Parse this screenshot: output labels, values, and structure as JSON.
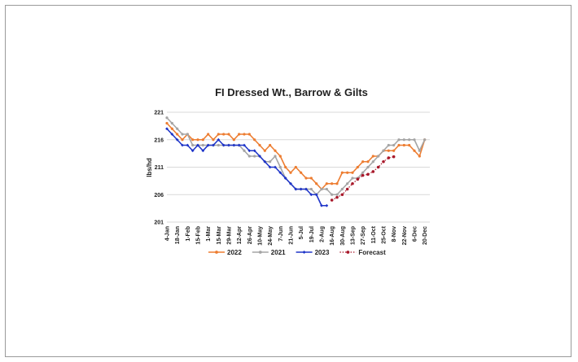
{
  "chart_data": {
    "type": "line",
    "title": "FI Dressed Wt., Barrow & Gilts",
    "xlabel": "",
    "ylabel": "lbs/hd",
    "ylim": [
      201,
      221
    ],
    "yticks": [
      201,
      206,
      211,
      216,
      221
    ],
    "grid": "horizontal",
    "legend_position": "bottom",
    "categories": [
      "4-Jan",
      "11-Jan",
      "18-Jan",
      "25-Jan",
      "1-Feb",
      "8-Feb",
      "15-Feb",
      "22-Feb",
      "1-Mar",
      "8-Mar",
      "15-Mar",
      "22-Mar",
      "29-Mar",
      "5-Apr",
      "12-Apr",
      "19-Apr",
      "26-Apr",
      "3-May",
      "10-May",
      "17-May",
      "24-May",
      "31-May",
      "7-Jun",
      "14-Jun",
      "21-Jun",
      "28-Jun",
      "5-Jul",
      "12-Jul",
      "19-Jul",
      "26-Jul",
      "2-Aug",
      "9-Aug",
      "16-Aug",
      "23-Aug",
      "30-Aug",
      "6-Sep",
      "13-Sep",
      "20-Sep",
      "27-Sep",
      "4-Oct",
      "11-Oct",
      "18-Oct",
      "25-Oct",
      "1-Nov",
      "8-Nov",
      "15-Nov",
      "22-Nov",
      "29-Nov",
      "6-Dec",
      "13-Dec",
      "20-Dec",
      "27-Dec"
    ],
    "tick_labels": [
      "4-Jan",
      "18-Jan",
      "1-Feb",
      "15-Feb",
      "1-Mar",
      "15-Mar",
      "29-Mar",
      "12-Apr",
      "26-Apr",
      "10-May",
      "24-May",
      "7-Jun",
      "21-Jun",
      "5-Jul",
      "19-Jul",
      "2-Aug",
      "16-Aug",
      "30-Aug",
      "13-Sep",
      "27-Sep",
      "11-Oct",
      "25-Oct",
      "8-Nov",
      "22-Nov",
      "6-Dec",
      "20-Dec"
    ],
    "series": [
      {
        "name": "2022",
        "color": "#ed7d31",
        "style": "solid",
        "marker": "circle",
        "values": [
          219,
          218,
          217,
          216,
          217,
          216,
          216,
          216,
          217,
          216,
          217,
          217,
          217,
          216,
          217,
          217,
          217,
          216,
          215,
          214,
          215,
          214,
          213,
          211,
          210,
          211,
          210,
          209,
          209,
          208,
          207,
          208,
          208,
          208,
          210,
          210,
          210,
          211,
          212,
          212,
          213,
          213,
          214,
          214,
          214,
          215,
          215,
          215,
          214,
          213,
          216,
          null
        ]
      },
      {
        "name": "2021",
        "color": "#a5a5a5",
        "style": "solid",
        "marker": "circle",
        "values": [
          220,
          219,
          218,
          217,
          217,
          215,
          215,
          215,
          215,
          215,
          215,
          215,
          215,
          215,
          215,
          214,
          213,
          213,
          213,
          212,
          212,
          213,
          211,
          209,
          208,
          207,
          207,
          207,
          207,
          206,
          207,
          207,
          206,
          206,
          207,
          208,
          209,
          209,
          210,
          211,
          212,
          213,
          214,
          215,
          215,
          216,
          216,
          216,
          216,
          214,
          216,
          null
        ]
      },
      {
        "name": "2023",
        "color": "#1f35c9",
        "style": "solid",
        "marker": "diamond",
        "values": [
          218,
          217,
          216,
          215,
          215,
          214,
          215,
          214,
          215,
          215,
          216,
          215,
          215,
          215,
          215,
          215,
          214,
          214,
          213,
          212,
          211,
          211,
          210,
          209,
          208,
          207,
          207,
          207,
          206,
          206,
          204,
          204,
          null,
          null,
          null,
          null,
          null,
          null,
          null,
          null,
          null,
          null,
          null,
          null,
          null,
          null,
          null,
          null,
          null,
          null,
          null,
          null
        ]
      },
      {
        "name": "Forecast",
        "color": "#a8182a",
        "style": "dotted",
        "marker": "circle",
        "values": [
          null,
          null,
          null,
          null,
          null,
          null,
          null,
          null,
          null,
          null,
          null,
          null,
          null,
          null,
          null,
          null,
          null,
          null,
          null,
          null,
          null,
          null,
          null,
          null,
          null,
          null,
          null,
          null,
          null,
          null,
          null,
          null,
          205,
          205.5,
          206,
          207,
          208,
          208.8,
          209.5,
          209.7,
          210.2,
          211,
          212,
          212.7,
          212.9,
          null,
          null,
          null,
          null,
          null,
          null,
          null
        ]
      }
    ]
  }
}
